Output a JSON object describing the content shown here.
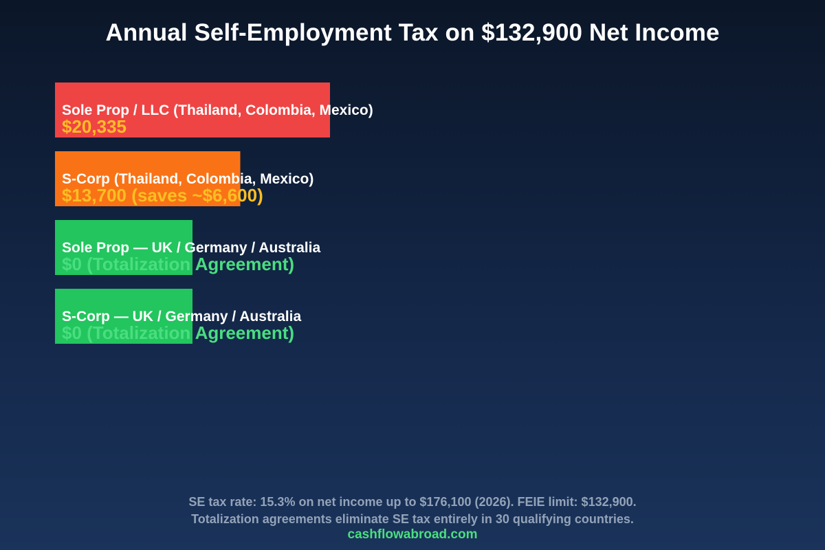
{
  "title": "Annual Self-Employment Tax on $132,900 Net Income",
  "chart_data": {
    "type": "bar",
    "orientation": "horizontal",
    "categories": [
      "Sole Prop / LLC (Thailand, Colombia, Mexico)",
      "S-Corp (Thailand, Colombia, Mexico)",
      "Sole Prop — UK / Germany / Australia",
      "S-Corp — UK / Germany / Australia"
    ],
    "values": [
      20335,
      13700,
      0,
      0
    ],
    "value_labels": [
      "$20,335",
      "$13,700 (saves ~$6,600)",
      "$0 (Totalization Agreement)",
      "$0 (Totalization Agreement)"
    ],
    "bar_colors": [
      "#ef4444",
      "#f97316",
      "#22c55e",
      "#22c55e"
    ],
    "value_label_colors": [
      "#fbbf24",
      "#fbbf24",
      "#4ade80",
      "#4ade80"
    ],
    "grid": false,
    "legend": "none"
  },
  "footnotes": [
    "SE tax rate: 15.3% on net income up to $176,100 (2026). FEIE limit: $132,900.",
    "Totalization agreements eliminate SE tax entirely in 30 qualifying countries."
  ],
  "site": "cashflowabroad.com"
}
